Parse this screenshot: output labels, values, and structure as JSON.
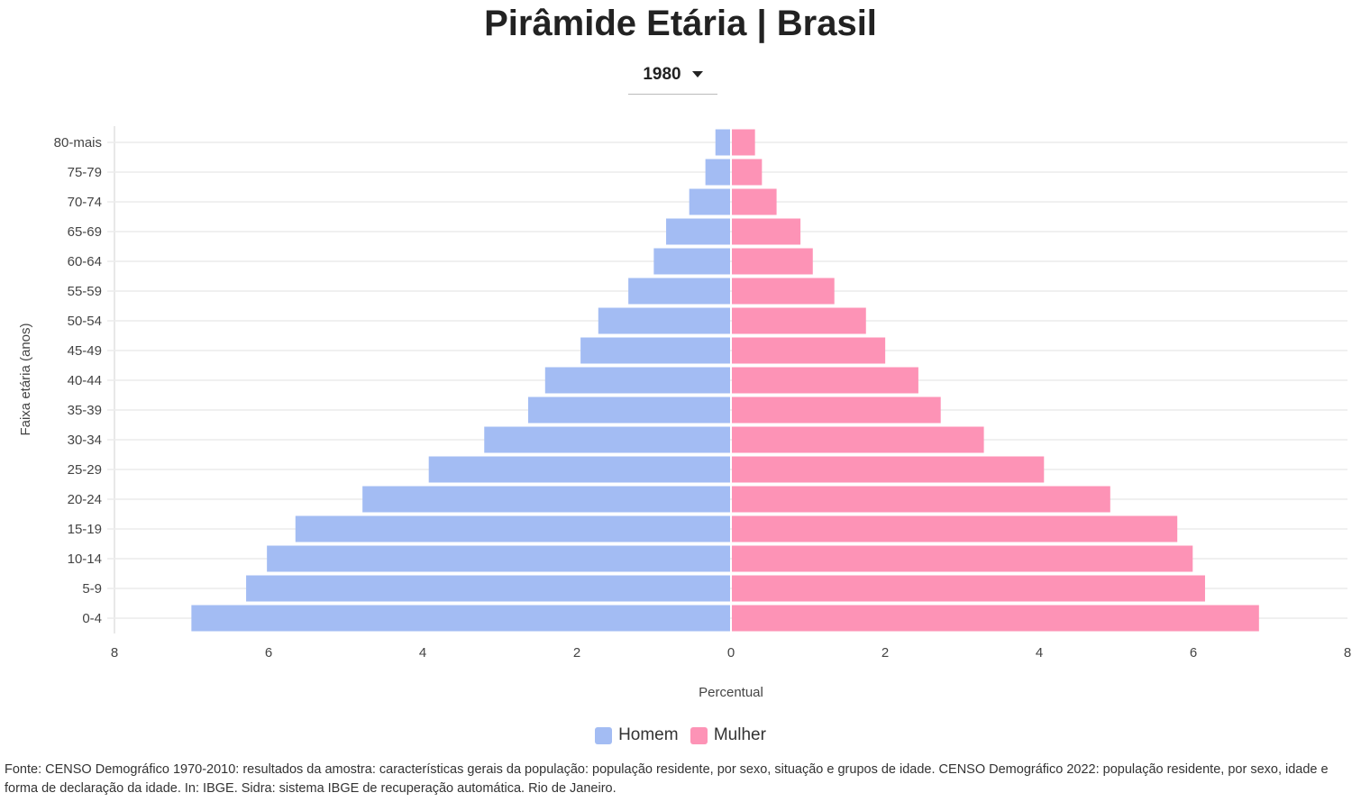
{
  "title": "Pirâmide Etária | Brasil",
  "year_selector": {
    "value": "1980"
  },
  "source": "Fonte: CENSO Demográfico 1970-2010: resultados da amostra: características gerais da população: população residente, por sexo, situação e grupos de idade. CENSO Demográfico 2022: população residente, por sexo, idade e forma de declaração da idade. In: IBGE. Sidra: sistema IBGE de recuperação automática. Rio de Janeiro.",
  "chart_data": {
    "type": "bar",
    "orientation": "horizontal-pyramid",
    "xlabel": "Percentual",
    "ylabel": "Faixa etária (anos)",
    "xlim": [
      -8,
      8
    ],
    "x_ticks": [
      "8",
      "6",
      "4",
      "2",
      "0",
      "2",
      "4",
      "6",
      "8"
    ],
    "grid": true,
    "legend_position": "bottom",
    "categories": [
      "80-mais",
      "75-79",
      "70-74",
      "65-69",
      "60-64",
      "55-59",
      "50-54",
      "45-49",
      "40-44",
      "35-39",
      "30-34",
      "25-29",
      "20-24",
      "15-19",
      "10-14",
      "5-9",
      "0-4"
    ],
    "series": [
      {
        "name": "Homem",
        "color": "#a3bcf3",
        "values": [
          0.19,
          0.32,
          0.53,
          0.83,
          0.99,
          1.32,
          1.71,
          1.94,
          2.4,
          2.62,
          3.19,
          3.91,
          4.77,
          5.64,
          6.01,
          6.28,
          6.99
        ]
      },
      {
        "name": "Mulher",
        "color": "#fd93b6",
        "values": [
          0.3,
          0.39,
          0.58,
          0.89,
          1.05,
          1.33,
          1.74,
          1.99,
          2.42,
          2.71,
          3.27,
          4.05,
          4.91,
          5.78,
          5.98,
          6.14,
          6.84
        ]
      }
    ]
  }
}
